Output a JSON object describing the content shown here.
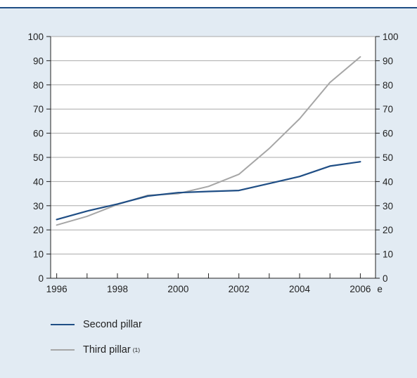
{
  "chart_data": {
    "type": "line",
    "x": [
      1996,
      1997,
      1998,
      1999,
      2000,
      2001,
      2002,
      2003,
      2004,
      2005,
      2006
    ],
    "x_tick_labels": [
      "1996",
      "1998",
      "2000",
      "2002",
      "2004",
      "2006"
    ],
    "x_tick_suffix": "e",
    "ylim": [
      0,
      100
    ],
    "y_ticks": [
      "0",
      "10",
      "20",
      "30",
      "40",
      "50",
      "60",
      "70",
      "80",
      "90",
      "100"
    ],
    "grid": true,
    "series": [
      {
        "name": "Second pillar",
        "color": "#1f4e85",
        "values": [
          24.3,
          27.8,
          30.7,
          34.0,
          35.4,
          35.9,
          36.3,
          39.2,
          42.1,
          46.4,
          48.2
        ]
      },
      {
        "name": "Third pillar",
        "color": "#a6a6a6",
        "note": "(1)",
        "values": [
          22.0,
          25.6,
          30.5,
          34.3,
          35.0,
          38.0,
          43.0,
          53.7,
          66.0,
          81.0,
          91.6
        ]
      }
    ],
    "legend_position": "bottom-left"
  }
}
